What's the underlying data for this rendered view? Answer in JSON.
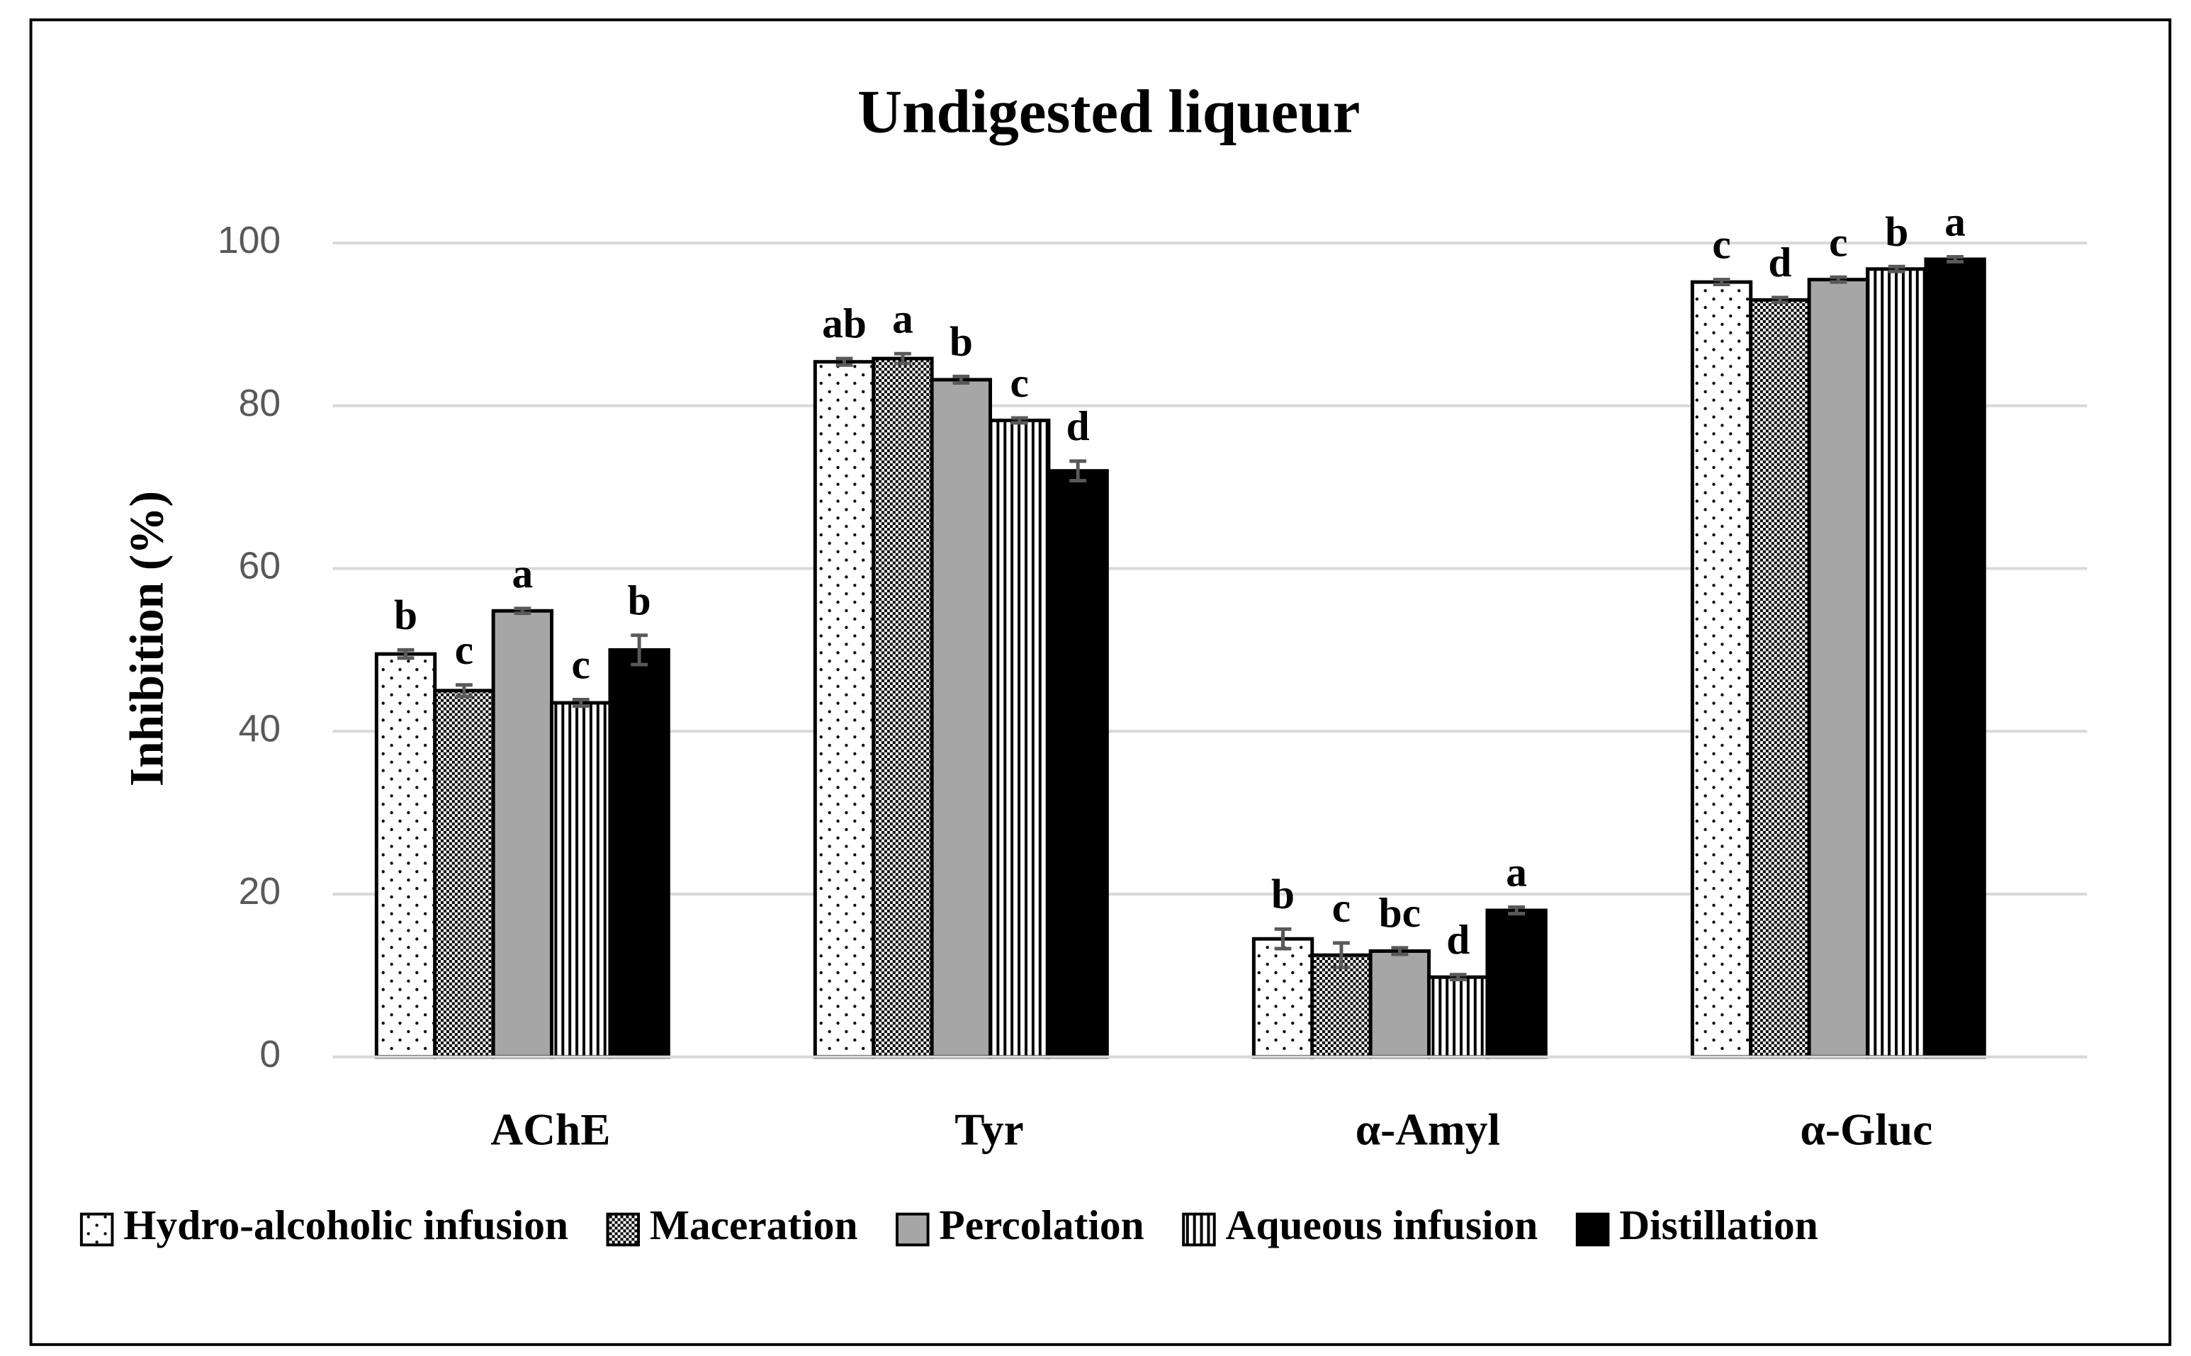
{
  "chart_data": {
    "type": "bar",
    "title": "Undigested liqueur",
    "y_label": "Inhibition (%)",
    "categories": [
      "AChE",
      "Tyr",
      "α-Amyl",
      "α-Gluc"
    ],
    "ylim": [
      0,
      100
    ],
    "yticks": [
      0,
      20,
      40,
      60,
      80,
      100
    ],
    "grid": true,
    "legend": "bottom",
    "series": [
      {
        "name": "Hydro-alcoholic infusion",
        "color": "#ffffff",
        "pattern": "dots",
        "values": [
          49.5,
          85.4,
          14.5,
          95.2
        ],
        "errors": [
          0.5,
          0.4,
          1.2,
          0.3
        ],
        "letters": [
          "b",
          "ab",
          "b",
          "c"
        ]
      },
      {
        "name": "Maceration",
        "color": "#ffffff",
        "pattern": "checker",
        "values": [
          45,
          85.8,
          12.5,
          93
        ],
        "errors": [
          0.7,
          0.6,
          1.5,
          0.3
        ],
        "letters": [
          "c",
          "a",
          "c",
          "d"
        ]
      },
      {
        "name": "Percolation",
        "color": "#a6a6a6",
        "pattern": "solid",
        "values": [
          54.8,
          83.2,
          13,
          95.5
        ],
        "errors": [
          0.3,
          0.4,
          0.4,
          0.3
        ],
        "letters": [
          "a",
          "b",
          "bc",
          "c"
        ]
      },
      {
        "name": "Aqueous infusion",
        "color": "#ffffff",
        "pattern": "stripes",
        "values": [
          43.5,
          78.2,
          9.8,
          96.8
        ],
        "errors": [
          0.4,
          0.3,
          0.3,
          0.3
        ],
        "letters": [
          "c",
          "c",
          "d",
          "b"
        ]
      },
      {
        "name": "Distillation",
        "color": "#000000",
        "pattern": "solid",
        "values": [
          50,
          72,
          18,
          98
        ],
        "errors": [
          1.8,
          1.2,
          0.4,
          0.3
        ],
        "letters": [
          "b",
          "d",
          "a",
          "a"
        ]
      }
    ]
  }
}
